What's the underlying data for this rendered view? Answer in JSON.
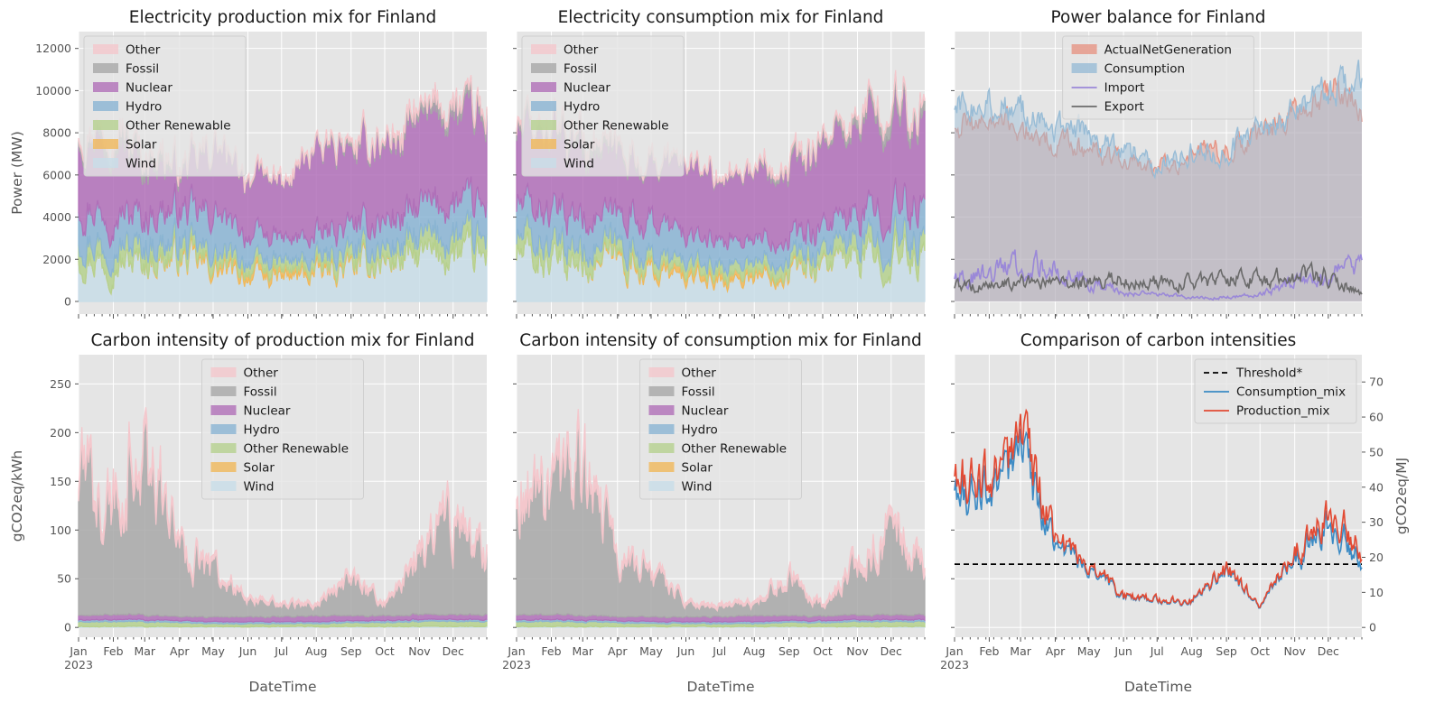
{
  "figure": {
    "months": [
      "Jan",
      "Feb",
      "Mar",
      "Apr",
      "May",
      "Jun",
      "Jul",
      "Aug",
      "Sep",
      "Oct",
      "Nov",
      "Dec"
    ],
    "year": "2023",
    "xlabel": "DateTime"
  },
  "colors": {
    "Other": "#f4c7cc",
    "Fossil": "#a8a8a8",
    "Nuclear": "#b06fb8",
    "Hydro": "#8ab4d3",
    "Other Renewable": "#b5d18e",
    "Solar": "#f0b85a",
    "Wind": "#c8dde8",
    "ActualNetGeneration": "#e69585",
    "Consumption": "#98bcd6",
    "Import": "#9a88d8",
    "Export": "#6a6a6a",
    "Threshold*": "#000000",
    "Consumption_mix": "#3b8ac4",
    "Production_mix": "#e24a33"
  },
  "chart_data": [
    {
      "id": "p1",
      "type": "area",
      "stacked": true,
      "title": "Electricity production mix for Finland",
      "ylabel": "Power (MW)",
      "ylim": [
        -600,
        12800
      ],
      "yticks": [
        0,
        2000,
        4000,
        6000,
        8000,
        10000,
        12000
      ],
      "legend_position": "upper-left",
      "legend": [
        "Other",
        "Fossil",
        "Nuclear",
        "Hydro",
        "Other Renewable",
        "Solar",
        "Wind"
      ],
      "x": [
        "2023-01-01",
        "2023-02-01",
        "2023-03-01",
        "2023-04-01",
        "2023-05-01",
        "2023-06-01",
        "2023-07-01",
        "2023-08-01",
        "2023-09-01",
        "2023-10-01",
        "2023-11-01",
        "2023-12-01",
        "2023-12-31"
      ],
      "series": [
        {
          "name": "Wind",
          "values": [
            2300,
            1800,
            1900,
            2100,
            1500,
            1200,
            1100,
            1300,
            1600,
            1900,
            2100,
            2300,
            2000
          ]
        },
        {
          "name": "Solar",
          "values": [
            0,
            0,
            30,
            150,
            250,
            300,
            300,
            250,
            150,
            60,
            0,
            0,
            0
          ]
        },
        {
          "name": "Other Renewable",
          "values": [
            800,
            800,
            750,
            600,
            500,
            450,
            450,
            500,
            550,
            650,
            750,
            800,
            800
          ]
        },
        {
          "name": "Hydro",
          "values": [
            1600,
            1500,
            1400,
            1500,
            1900,
            1300,
            1100,
            1050,
            1200,
            1250,
            1450,
            1600,
            1600
          ]
        },
        {
          "name": "Nuclear",
          "values": [
            3300,
            3300,
            2800,
            2000,
            3000,
            2700,
            2600,
            4100,
            3600,
            3700,
            4200,
            4300,
            4200
          ]
        },
        {
          "name": "Fossil",
          "values": [
            300,
            400,
            500,
            200,
            120,
            80,
            60,
            80,
            220,
            150,
            300,
            400,
            350
          ]
        },
        {
          "name": "Other",
          "values": [
            100,
            100,
            100,
            100,
            100,
            80,
            80,
            90,
            100,
            100,
            100,
            100,
            100
          ]
        }
      ]
    },
    {
      "id": "p2",
      "type": "area",
      "stacked": true,
      "title": "Electricity consumption mix for Finland",
      "ylim": [
        -600,
        12800
      ],
      "legend_position": "upper-left",
      "legend": [
        "Other",
        "Fossil",
        "Nuclear",
        "Hydro",
        "Other Renewable",
        "Solar",
        "Wind"
      ],
      "x": [
        "2023-01-01",
        "2023-02-01",
        "2023-03-01",
        "2023-04-01",
        "2023-05-01",
        "2023-06-01",
        "2023-07-01",
        "2023-08-01",
        "2023-09-01",
        "2023-10-01",
        "2023-11-01",
        "2023-12-01",
        "2023-12-31"
      ],
      "series": [
        {
          "name": "Wind",
          "values": [
            2300,
            1800,
            1800,
            2000,
            1400,
            1100,
            1000,
            1200,
            1500,
            1800,
            2000,
            2200,
            2000
          ]
        },
        {
          "name": "Solar",
          "values": [
            0,
            0,
            30,
            150,
            250,
            300,
            300,
            250,
            150,
            60,
            0,
            0,
            0
          ]
        },
        {
          "name": "Other Renewable",
          "values": [
            800,
            800,
            750,
            600,
            500,
            450,
            450,
            500,
            550,
            650,
            750,
            800,
            800
          ]
        },
        {
          "name": "Hydro",
          "values": [
            1600,
            1600,
            1500,
            1400,
            1700,
            1300,
            1200,
            1050,
            1000,
            1100,
            1200,
            1500,
            1600
          ]
        },
        {
          "name": "Nuclear",
          "values": [
            3500,
            3600,
            3400,
            2800,
            2600,
            3300,
            2800,
            3300,
            3300,
            3800,
            4200,
            4400,
            4300
          ]
        },
        {
          "name": "Fossil",
          "values": [
            300,
            400,
            500,
            250,
            150,
            100,
            80,
            100,
            250,
            200,
            350,
            450,
            400
          ]
        },
        {
          "name": "Other",
          "values": [
            100,
            100,
            100,
            100,
            100,
            80,
            80,
            90,
            100,
            100,
            100,
            100,
            100
          ]
        }
      ]
    },
    {
      "id": "p3",
      "type": "area",
      "stacked": false,
      "title": "Power balance for Finland",
      "ylim": [
        -600,
        12800
      ],
      "legend_position": "upper-center",
      "legend": [
        "ActualNetGeneration",
        "Consumption",
        "Import",
        "Export"
      ],
      "x": [
        "2023-01-01",
        "2023-02-01",
        "2023-03-01",
        "2023-04-01",
        "2023-05-01",
        "2023-06-01",
        "2023-07-01",
        "2023-08-01",
        "2023-09-01",
        "2023-10-01",
        "2023-11-01",
        "2023-12-01",
        "2023-12-31"
      ],
      "series": [
        {
          "name": "ActualNetGeneration",
          "kind": "area",
          "values": [
            8400,
            8500,
            8200,
            7500,
            7200,
            6600,
            6300,
            7000,
            7200,
            7800,
            8900,
            10300,
            9200
          ]
        },
        {
          "name": "Consumption",
          "kind": "area",
          "values": [
            9300,
            9400,
            9000,
            8300,
            7900,
            7100,
            6600,
            7000,
            7200,
            8000,
            8900,
            10100,
            10400
          ]
        },
        {
          "name": "Import",
          "kind": "line",
          "values": [
            1200,
            1300,
            1700,
            1500,
            900,
            400,
            300,
            200,
            200,
            300,
            900,
            1300,
            1500
          ]
        },
        {
          "name": "Export",
          "kind": "line",
          "values": [
            700,
            700,
            900,
            800,
            900,
            1000,
            900,
            900,
            1000,
            1100,
            1100,
            1200,
            400
          ]
        }
      ]
    },
    {
      "id": "p4",
      "type": "area",
      "stacked": true,
      "title": "Carbon intensity of production mix for Finland",
      "ylabel": "gCO2eq/kWh",
      "ylim": [
        -10,
        280
      ],
      "yticks": [
        0,
        50,
        100,
        150,
        200,
        250
      ],
      "legend_position": "upper-center",
      "legend": [
        "Other",
        "Fossil",
        "Nuclear",
        "Hydro",
        "Other Renewable",
        "Solar",
        "Wind"
      ],
      "x": [
        "2023-01-01",
        "2023-02-01",
        "2023-03-01",
        "2023-04-01",
        "2023-05-01",
        "2023-06-01",
        "2023-07-01",
        "2023-08-01",
        "2023-09-01",
        "2023-10-01",
        "2023-11-01",
        "2023-12-01",
        "2023-12-31"
      ],
      "series": [
        {
          "name": "Wind",
          "values": [
            1,
            1,
            1,
            1,
            1,
            1,
            1,
            1,
            1,
            1,
            1,
            1,
            1
          ]
        },
        {
          "name": "Solar",
          "values": [
            0,
            0,
            0,
            0,
            0,
            0,
            0,
            0,
            0,
            0,
            0,
            0,
            0
          ]
        },
        {
          "name": "Other Renewable",
          "values": [
            5,
            5,
            5,
            4,
            3,
            3,
            3,
            3,
            4,
            4,
            5,
            5,
            5
          ]
        },
        {
          "name": "Hydro",
          "values": [
            2,
            2,
            2,
            2,
            2,
            2,
            2,
            2,
            2,
            2,
            2,
            2,
            2
          ]
        },
        {
          "name": "Nuclear",
          "values": [
            5,
            5,
            5,
            4,
            5,
            5,
            5,
            6,
            5,
            5,
            5,
            5,
            5
          ]
        },
        {
          "name": "Fossil",
          "values": [
            130,
            120,
            170,
            70,
            50,
            15,
            12,
            12,
            40,
            10,
            60,
            95,
            55
          ]
        },
        {
          "name": "Other",
          "values": [
            10,
            10,
            12,
            6,
            5,
            3,
            3,
            3,
            5,
            3,
            8,
            10,
            8
          ]
        }
      ]
    },
    {
      "id": "p5",
      "type": "area",
      "stacked": true,
      "title": "Carbon intensity of consumption mix for Finland",
      "ylim": [
        -10,
        280
      ],
      "legend_position": "upper-center",
      "legend": [
        "Other",
        "Fossil",
        "Nuclear",
        "Hydro",
        "Other Renewable",
        "Solar",
        "Wind"
      ],
      "x": [
        "2023-01-01",
        "2023-02-01",
        "2023-03-01",
        "2023-04-01",
        "2023-05-01",
        "2023-06-01",
        "2023-07-01",
        "2023-08-01",
        "2023-09-01",
        "2023-10-01",
        "2023-11-01",
        "2023-12-01",
        "2023-12-31"
      ],
      "series": [
        {
          "name": "Wind",
          "values": [
            1,
            1,
            1,
            1,
            1,
            1,
            1,
            1,
            1,
            1,
            1,
            1,
            1
          ]
        },
        {
          "name": "Solar",
          "values": [
            0,
            0,
            0,
            0,
            0,
            0,
            0,
            0,
            0,
            0,
            0,
            0,
            0
          ]
        },
        {
          "name": "Other Renewable",
          "values": [
            5,
            5,
            5,
            4,
            3,
            3,
            3,
            3,
            4,
            4,
            5,
            5,
            5
          ]
        },
        {
          "name": "Hydro",
          "values": [
            2,
            2,
            2,
            2,
            2,
            2,
            2,
            2,
            2,
            2,
            2,
            2,
            2
          ]
        },
        {
          "name": "Nuclear",
          "values": [
            5,
            5,
            5,
            4,
            5,
            5,
            5,
            6,
            5,
            5,
            5,
            5,
            5
          ]
        },
        {
          "name": "Fossil",
          "values": [
            120,
            110,
            150,
            60,
            45,
            14,
            11,
            11,
            40,
            9,
            50,
            85,
            50
          ]
        },
        {
          "name": "Other",
          "values": [
            10,
            10,
            12,
            6,
            5,
            3,
            3,
            3,
            5,
            3,
            8,
            10,
            8
          ]
        }
      ]
    },
    {
      "id": "p6",
      "type": "line",
      "title": "Comparison of carbon intensities",
      "ylim": [
        -10,
        280
      ],
      "y2label": "gCO2eq/MJ",
      "y2ticks": [
        0,
        10,
        20,
        30,
        40,
        50,
        60,
        70
      ],
      "legend_position": "upper-right",
      "legend": [
        "Threshold*",
        "Consumption_mix",
        "Production_mix"
      ],
      "x": [
        "2023-01-01",
        "2023-02-01",
        "2023-03-01",
        "2023-04-01",
        "2023-05-01",
        "2023-06-01",
        "2023-07-01",
        "2023-08-01",
        "2023-09-01",
        "2023-10-01",
        "2023-11-01",
        "2023-12-01",
        "2023-12-31"
      ],
      "series": [
        {
          "name": "Threshold*",
          "style": "dashed",
          "values": [
            65,
            65,
            65,
            65,
            65,
            65,
            65,
            65,
            65,
            65,
            65,
            65,
            65
          ]
        },
        {
          "name": "Consumption_mix",
          "values": [
            145,
            135,
            175,
            80,
            63,
            30,
            27,
            26,
            58,
            22,
            70,
            110,
            70
          ]
        },
        {
          "name": "Production_mix",
          "values": [
            160,
            145,
            195,
            85,
            66,
            31,
            28,
            27,
            60,
            23,
            76,
            125,
            75
          ]
        }
      ]
    }
  ]
}
